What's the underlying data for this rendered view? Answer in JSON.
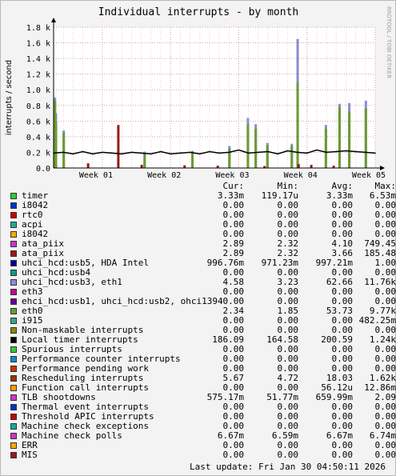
{
  "chart_data": {
    "type": "line",
    "title": "Individual interrupts - by month",
    "ylabel": "interrupts / second",
    "watermark": "RRDTOOL / TOBI OETIKER",
    "ylim": [
      0,
      1800
    ],
    "yticks": [
      0,
      200,
      400,
      600,
      800,
      1000,
      1200,
      1400,
      1600,
      1800
    ],
    "ytick_labels": [
      "0.0",
      "0.2 k",
      "0.4 k",
      "0.6 k",
      "0.8 k",
      "1.0 k",
      "1.2 k",
      "1.4 k",
      "1.6 k",
      "1.8 k"
    ],
    "x_range_days": [
      0,
      33
    ],
    "xticks": [
      {
        "label": "Week 01",
        "day": 5
      },
      {
        "label": "Week 02",
        "day": 12
      },
      {
        "label": "Week 03",
        "day": 19
      },
      {
        "label": "Week 04",
        "day": 26
      },
      {
        "label": "Week 05",
        "day": 33
      }
    ],
    "baseline": {
      "name": "Local timer interrupts",
      "color": "#000000",
      "x": [
        0,
        1,
        2,
        3,
        4,
        5,
        6,
        7,
        8,
        9,
        10,
        11,
        12,
        13,
        14,
        15,
        16,
        17,
        18,
        19,
        20,
        21,
        22,
        23,
        24,
        25,
        26,
        27,
        28,
        29,
        30,
        31,
        32,
        33
      ],
      "y": [
        190,
        200,
        180,
        210,
        180,
        200,
        190,
        180,
        200,
        190,
        180,
        210,
        180,
        190,
        200,
        180,
        210,
        190,
        200,
        230,
        190,
        200,
        210,
        180,
        220,
        200,
        190,
        230,
        200,
        210,
        220,
        210,
        200,
        190
      ]
    },
    "spikes": [
      {
        "series": "TLB shootdowns",
        "color": "#8b8bd0",
        "x": [
          0.1,
          0.2,
          1.0,
          9.3,
          14.2,
          18.0,
          19.9,
          20.7,
          21.9,
          24.4,
          25.0,
          27.9,
          29.3,
          30.3,
          32.0
        ],
        "y": [
          900,
          700,
          480,
          210,
          220,
          280,
          640,
          560,
          320,
          310,
          1650,
          550,
          820,
          830,
          860
        ]
      },
      {
        "series": "eth0",
        "color": "#6b9a30",
        "x": [
          0.1,
          0.2,
          1.0,
          9.3,
          14.2,
          18.0,
          19.9,
          20.7,
          21.9,
          24.4,
          25.0,
          27.9,
          29.3,
          30.3,
          32.0
        ],
        "y": [
          860,
          600,
          450,
          180,
          200,
          250,
          560,
          500,
          290,
          280,
          1090,
          500,
          780,
          720,
          760
        ]
      },
      {
        "series": "ata_piix",
        "color": "#991919",
        "x": [
          3.5,
          6.6,
          9.0,
          13.4,
          16.8,
          21.6,
          25.1,
          26.4,
          28.7
        ],
        "y": [
          60,
          550,
          40,
          35,
          30,
          25,
          50,
          40,
          30
        ]
      }
    ]
  },
  "legend": {
    "header": {
      "cur": "Cur:",
      "min": "Min:",
      "avg": "Avg:",
      "max": "Max:"
    },
    "rows": [
      {
        "label": "timer",
        "color": "#33cc33",
        "cur": "3.33m",
        "min": "119.17u",
        "avg": "3.33m",
        "max": "6.53m"
      },
      {
        "label": "i8042",
        "color": "#0033cc",
        "cur": "0.00",
        "min": "0.00",
        "avg": "0.00",
        "max": "0.00"
      },
      {
        "label": "rtc0",
        "color": "#cc0000",
        "cur": "0.00",
        "min": "0.00",
        "avg": "0.00",
        "max": "0.00"
      },
      {
        "label": "acpi",
        "color": "#22aa99",
        "cur": "0.00",
        "min": "0.00",
        "avg": "0.00",
        "max": "0.00"
      },
      {
        "label": "i8042",
        "color": "#ffaa00",
        "cur": "0.00",
        "min": "0.00",
        "avg": "0.00",
        "max": "0.00"
      },
      {
        "label": "ata_piix",
        "color": "#cc33cc",
        "cur": "2.89",
        "min": "2.32",
        "avg": "4.10",
        "max": "749.45"
      },
      {
        "label": "ata_piix",
        "color": "#991919",
        "cur": "2.89",
        "min": "2.32",
        "avg": "3.66",
        "max": "185.48"
      },
      {
        "label": "uhci_hcd:usb5, HDA Intel",
        "color": "#000099",
        "cur": "996.76m",
        "min": "971.23m",
        "avg": "997.21m",
        "max": "1.00"
      },
      {
        "label": "uhci_hcd:usb4",
        "color": "#119988",
        "cur": "0.00",
        "min": "0.00",
        "avg": "0.00",
        "max": "0.00"
      },
      {
        "label": "uhci_hcd:usb3, eth1",
        "color": "#8b8bd0",
        "cur": "4.58",
        "min": "3.23",
        "avg": "62.66",
        "max": "11.76k"
      },
      {
        "label": "eth3",
        "color": "#cc0099",
        "cur": "0.00",
        "min": "0.00",
        "avg": "0.00",
        "max": "0.00"
      },
      {
        "label": "ehci_hcd:usb1, uhci_hcd:usb2, ohci1394",
        "color": "#660099",
        "cur": "0.00",
        "min": "0.00",
        "avg": "0.00",
        "max": "0.00"
      },
      {
        "label": "eth0",
        "color": "#6b9a30",
        "cur": "2.34",
        "min": "1.85",
        "avg": "53.73",
        "max": "9.77k"
      },
      {
        "label": "i915",
        "color": "#33aa88",
        "cur": "0.00",
        "min": "0.00",
        "avg": "0.00",
        "max": "482.25m"
      },
      {
        "label": "Non-maskable interrupts",
        "color": "#888800",
        "cur": "0.00",
        "min": "0.00",
        "avg": "0.00",
        "max": "0.00"
      },
      {
        "label": "Local timer interrupts",
        "color": "#000000",
        "cur": "186.09",
        "min": "164.58",
        "avg": "200.59",
        "max": "1.24k"
      },
      {
        "label": "Spurious interrupts",
        "color": "#33cc33",
        "cur": "0.00",
        "min": "0.00",
        "avg": "0.00",
        "max": "0.00"
      },
      {
        "label": "Performance counter interrupts",
        "color": "#1188cc",
        "cur": "0.00",
        "min": "0.00",
        "avg": "0.00",
        "max": "0.00"
      },
      {
        "label": "Performance pending work",
        "color": "#cc3300",
        "cur": "0.00",
        "min": "0.00",
        "avg": "0.00",
        "max": "0.00"
      },
      {
        "label": "Rescheduling interrupts",
        "color": "#993300",
        "cur": "5.67",
        "min": "4.72",
        "avg": "18.03",
        "max": "1.62k"
      },
      {
        "label": "Function call interrupts",
        "color": "#ff9900",
        "cur": "0.00",
        "min": "0.00",
        "avg": "56.12u",
        "max": "12.86m"
      },
      {
        "label": "TLB shootdowns",
        "color": "#cc33cc",
        "cur": "575.17m",
        "min": "51.77m",
        "avg": "659.99m",
        "max": "2.09"
      },
      {
        "label": "Thermal event interrupts",
        "color": "#0033cc",
        "cur": "0.00",
        "min": "0.00",
        "avg": "0.00",
        "max": "0.00"
      },
      {
        "label": "Threshold APIC interrupts",
        "color": "#cc0000",
        "cur": "0.00",
        "min": "0.00",
        "avg": "0.00",
        "max": "0.00"
      },
      {
        "label": "Machine check exceptions",
        "color": "#11aa99",
        "cur": "0.00",
        "min": "0.00",
        "avg": "0.00",
        "max": "0.00"
      },
      {
        "label": "Machine check polls",
        "color": "#cc33cc",
        "cur": "6.67m",
        "min": "6.59m",
        "avg": "6.67m",
        "max": "6.74m"
      },
      {
        "label": "ERR",
        "color": "#ffaa00",
        "cur": "0.00",
        "min": "0.00",
        "avg": "0.00",
        "max": "0.00"
      },
      {
        "label": "MIS",
        "color": "#991919",
        "cur": "0.00",
        "min": "0.00",
        "avg": "0.00",
        "max": "0.00"
      }
    ]
  },
  "footer": {
    "last_update": "Last update:  Fri Jan 30 04:50:11 2026"
  }
}
